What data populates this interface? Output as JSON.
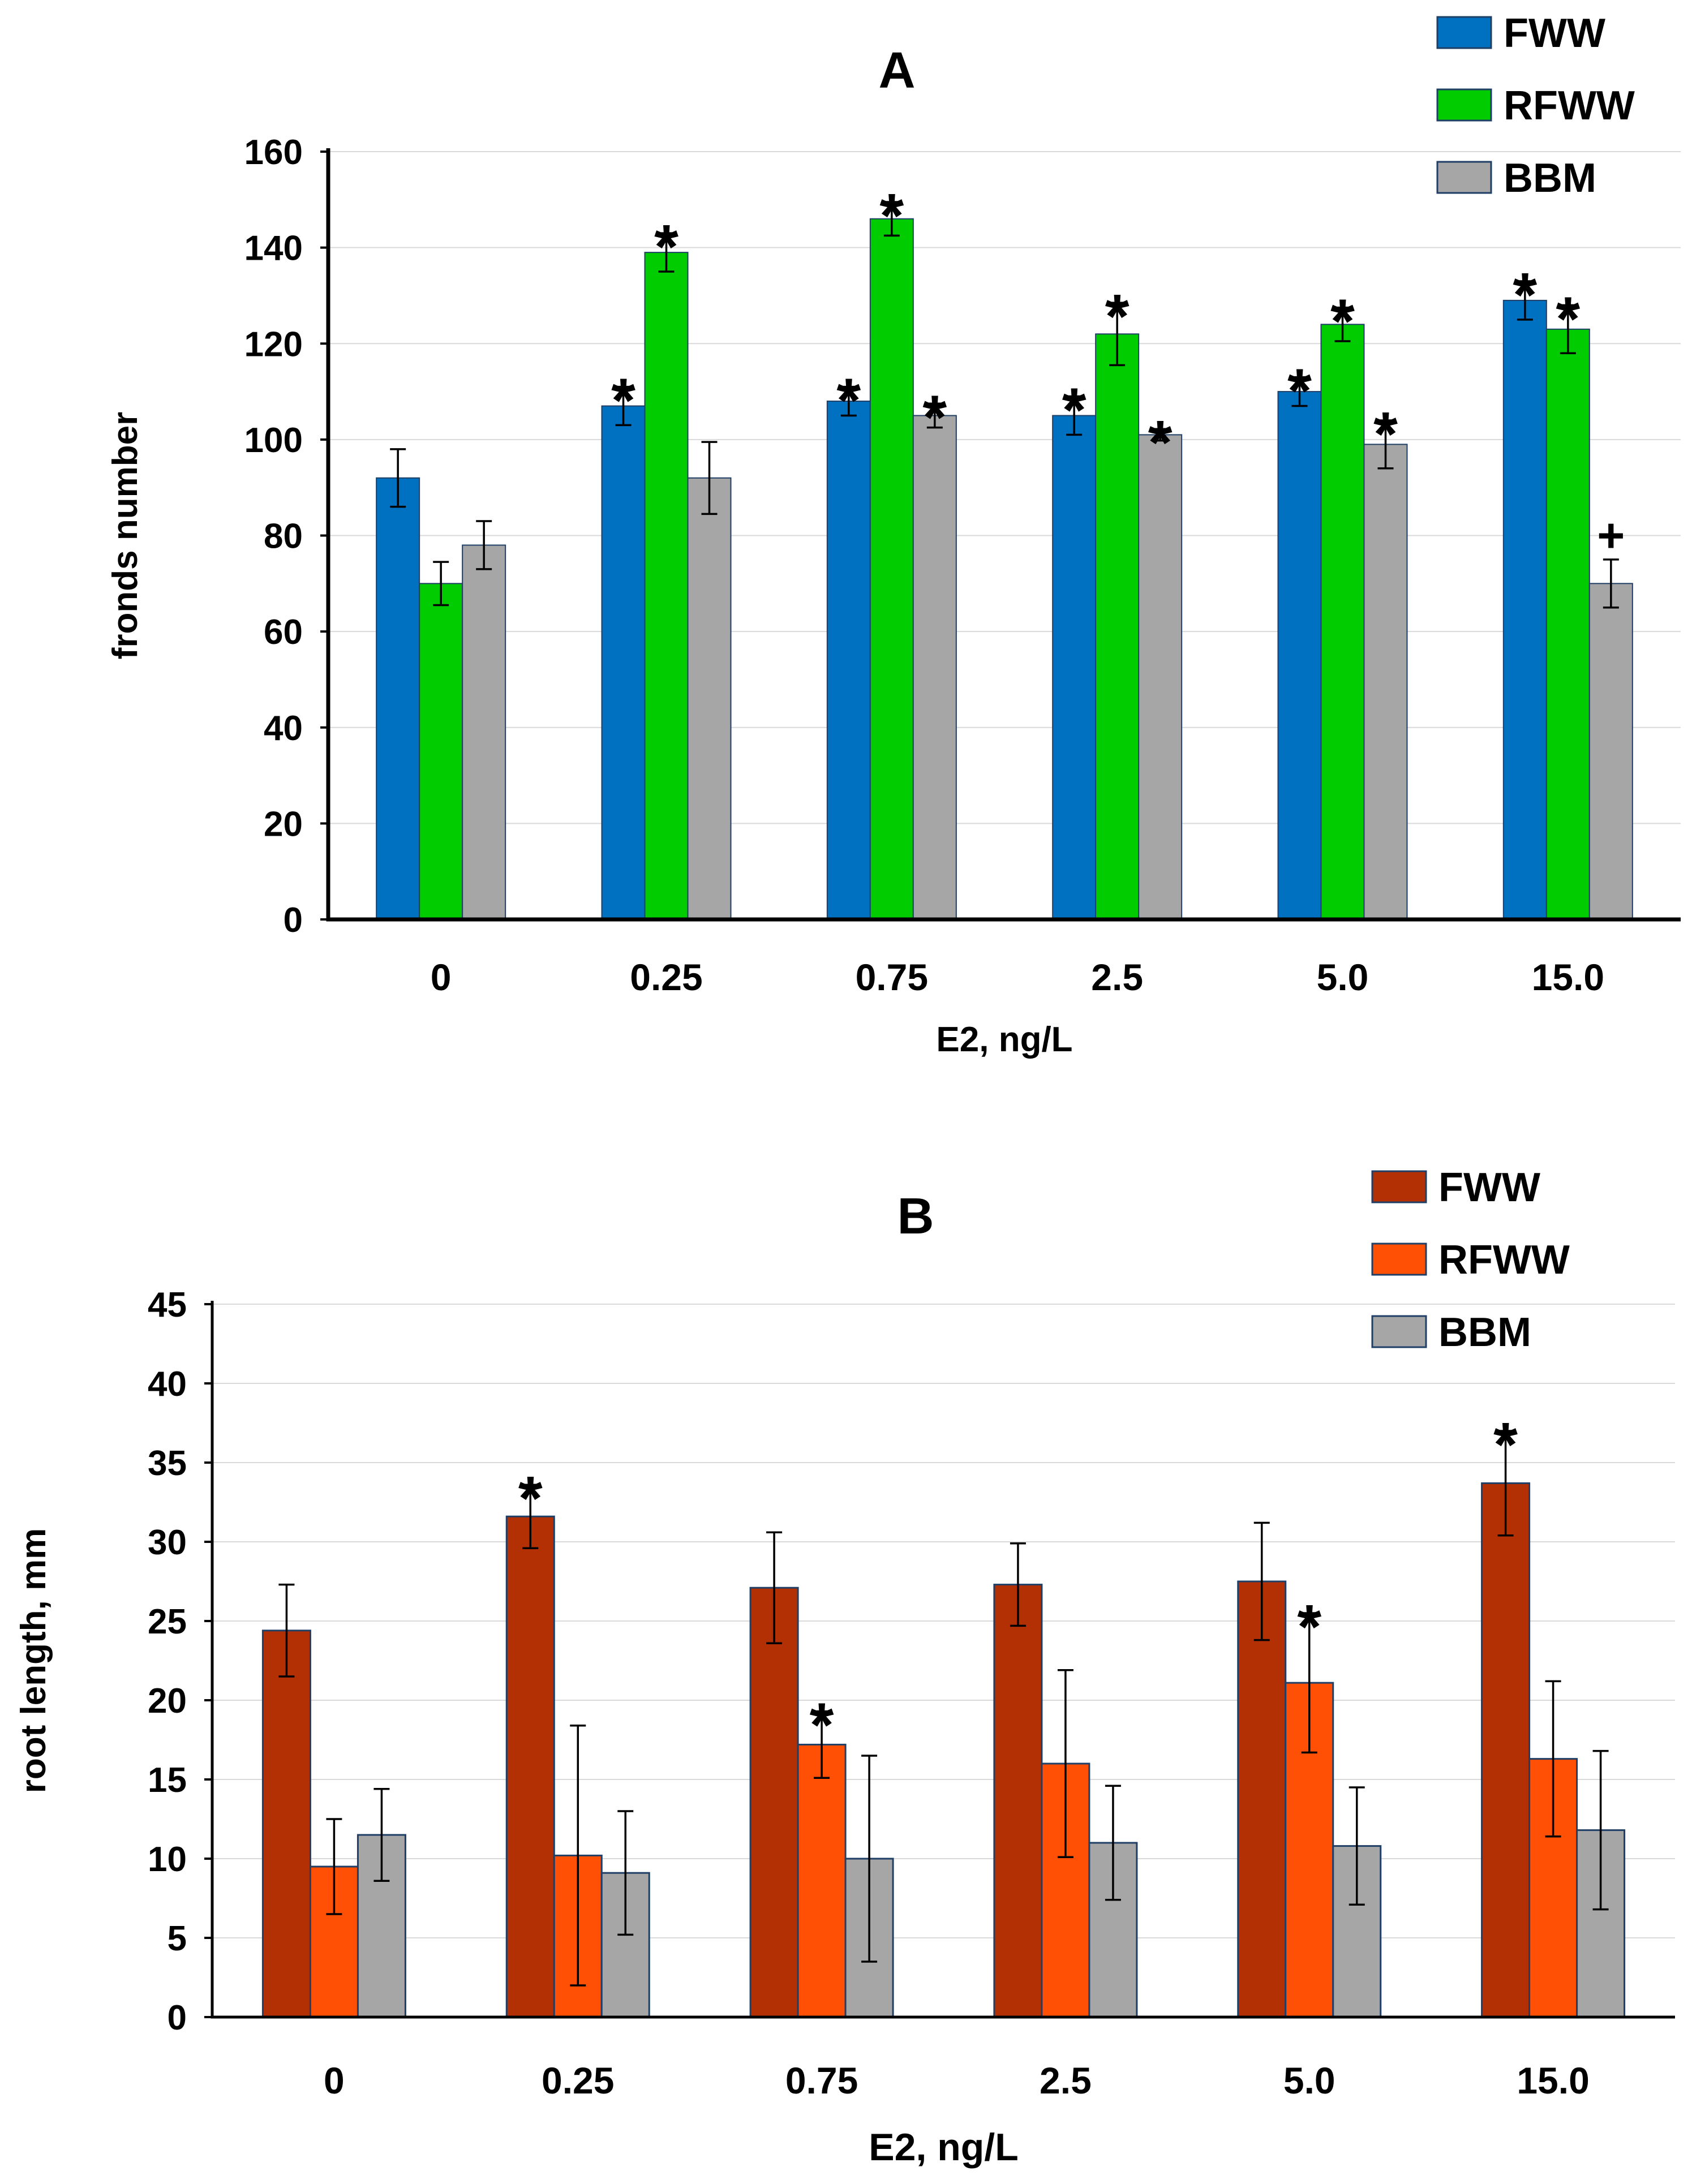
{
  "chart_data": [
    {
      "panel": "A",
      "type": "bar",
      "title": "A",
      "xlabel": "E2, ng/L",
      "ylabel": "fronds number",
      "categories": [
        "0",
        "0.25",
        "0.75",
        "2.5",
        "5.0",
        "15.0"
      ],
      "ylim": [
        0,
        160
      ],
      "yticks": [
        "0",
        "20",
        "40",
        "60",
        "80",
        "100",
        "120",
        "140",
        "160"
      ],
      "grid": true,
      "legend_position": "top-right",
      "series": [
        {
          "name": "FWW",
          "color": "#0070C0",
          "values": [
            92,
            107,
            108,
            105,
            110,
            129
          ],
          "errors": [
            6,
            4,
            3,
            4,
            3,
            4
          ],
          "marks": [
            "",
            "*",
            "*",
            "*",
            "*",
            "*"
          ]
        },
        {
          "name": "RFWW",
          "color": "#00CC00",
          "values": [
            70,
            139,
            146,
            122,
            124,
            123
          ],
          "errors": [
            4.5,
            4,
            3.5,
            6.5,
            3.5,
            5
          ],
          "marks": [
            "",
            "*",
            "*",
            "*",
            "*",
            "*"
          ]
        },
        {
          "name": "BBM",
          "color": "#A6A6A6",
          "values": [
            78,
            92,
            105,
            101,
            99,
            70
          ],
          "errors": [
            5,
            7.5,
            2.5,
            1.2,
            5,
            5
          ],
          "marks": [
            "",
            "",
            "*",
            "*",
            "*",
            "+"
          ]
        }
      ]
    },
    {
      "panel": "B",
      "type": "bar",
      "title": "B",
      "xlabel": "E2, ng/L",
      "ylabel": "root length, mm",
      "categories": [
        "0",
        "0.25",
        "0.75",
        "2.5",
        "5.0",
        "15.0"
      ],
      "ylim": [
        0,
        45
      ],
      "yticks": [
        "0",
        "5",
        "10",
        "15",
        "20",
        "25",
        "30",
        "35",
        "40",
        "45"
      ],
      "grid": true,
      "legend_position": "top-right",
      "series": [
        {
          "name": "FWW",
          "color": "#B23004",
          "values": [
            24.4,
            31.6,
            27.1,
            27.3,
            27.5,
            33.7
          ],
          "errors": [
            2.9,
            2,
            3.5,
            2.6,
            3.7,
            3.3
          ],
          "marks": [
            "",
            "*",
            "",
            "",
            "",
            "*"
          ]
        },
        {
          "name": "RFWW",
          "color": "#FF5005",
          "values": [
            9.5,
            10.2,
            17.2,
            16,
            21.1,
            16.3
          ],
          "errors": [
            3,
            8.2,
            2.1,
            5.9,
            4.4,
            4.9
          ],
          "marks": [
            "",
            "",
            "*",
            "",
            "*",
            ""
          ]
        },
        {
          "name": "BBM",
          "color": "#A6A6A6",
          "values": [
            11.5,
            9.1,
            10,
            11,
            10.8,
            11.8
          ],
          "errors": [
            2.9,
            3.9,
            6.5,
            3.6,
            3.7,
            5
          ],
          "marks": [
            "",
            "",
            "",
            "",
            "",
            ""
          ]
        }
      ]
    }
  ]
}
